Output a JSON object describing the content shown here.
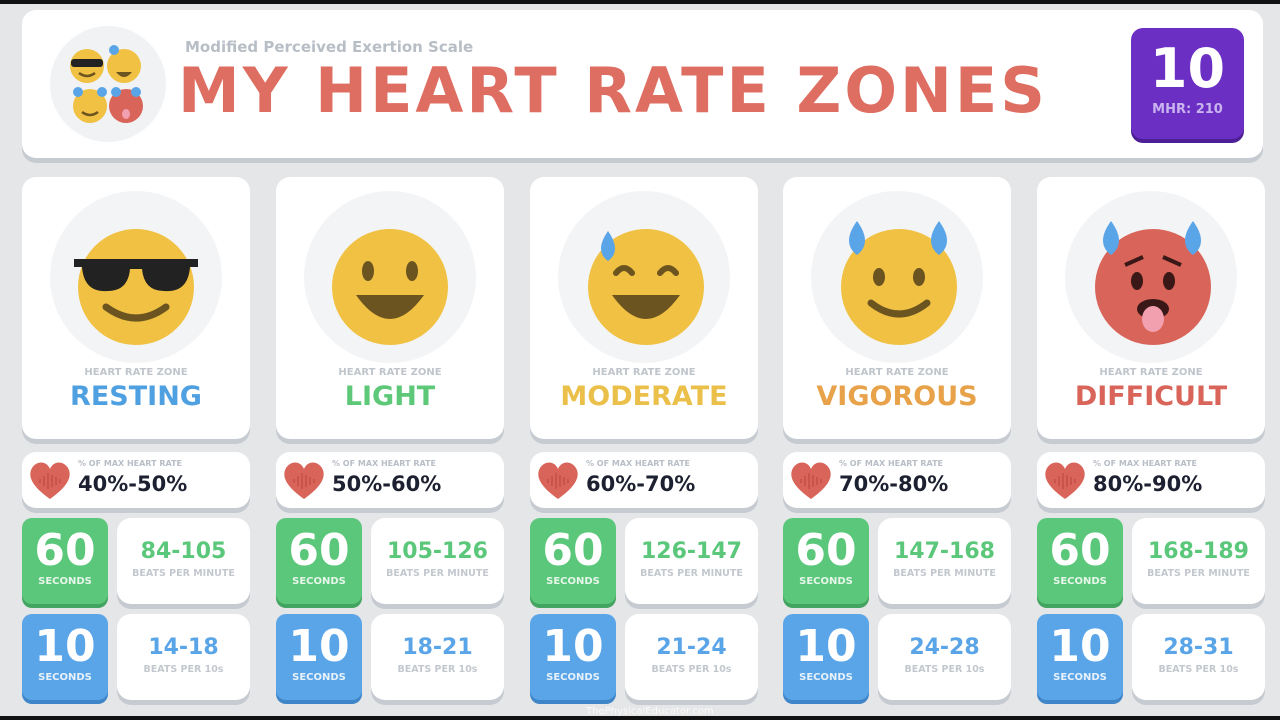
{
  "header": {
    "subtitle": "Modified Perceived Exertion Scale",
    "title": "MY HEART RATE ZONES",
    "badge_value": "10",
    "badge_label": "MHR: 210",
    "badge_color": "#6b2fc4",
    "title_color": "#de6e61"
  },
  "zone_label": "HEART RATE ZONE",
  "pct_label": "% OF MAX HEART RATE",
  "seconds_label": "SECONDS",
  "bpm_label": "BEATS PER MINUTE",
  "b10_label": "BEATS PER 10s",
  "sixty": "60",
  "ten": "10",
  "zones": [
    {
      "name": "RESTING",
      "color": "#4fa0e0",
      "emoji": "sunglasses-face-icon",
      "pct": "40%-50%",
      "bpm": "84-105",
      "b10": "14-18"
    },
    {
      "name": "LIGHT",
      "color": "#5cc878",
      "emoji": "smiling-face-icon",
      "pct": "50%-60%",
      "bpm": "105-126",
      "b10": "18-21"
    },
    {
      "name": "MODERATE",
      "color": "#ebc04a",
      "emoji": "grinning-sweat-face-icon",
      "pct": "60%-70%",
      "bpm": "126-147",
      "b10": "21-24"
    },
    {
      "name": "VIGOROUS",
      "color": "#e8a24a",
      "emoji": "smiling-sweat-face-icon",
      "pct": "70%-80%",
      "bpm": "147-168",
      "b10": "24-28"
    },
    {
      "name": "DIFFICULT",
      "color": "#d9655a",
      "emoji": "hot-face-icon",
      "pct": "80%-90%",
      "bpm": "168-189",
      "b10": "28-31"
    }
  ],
  "footer": "ThePhysicalEducator.com"
}
